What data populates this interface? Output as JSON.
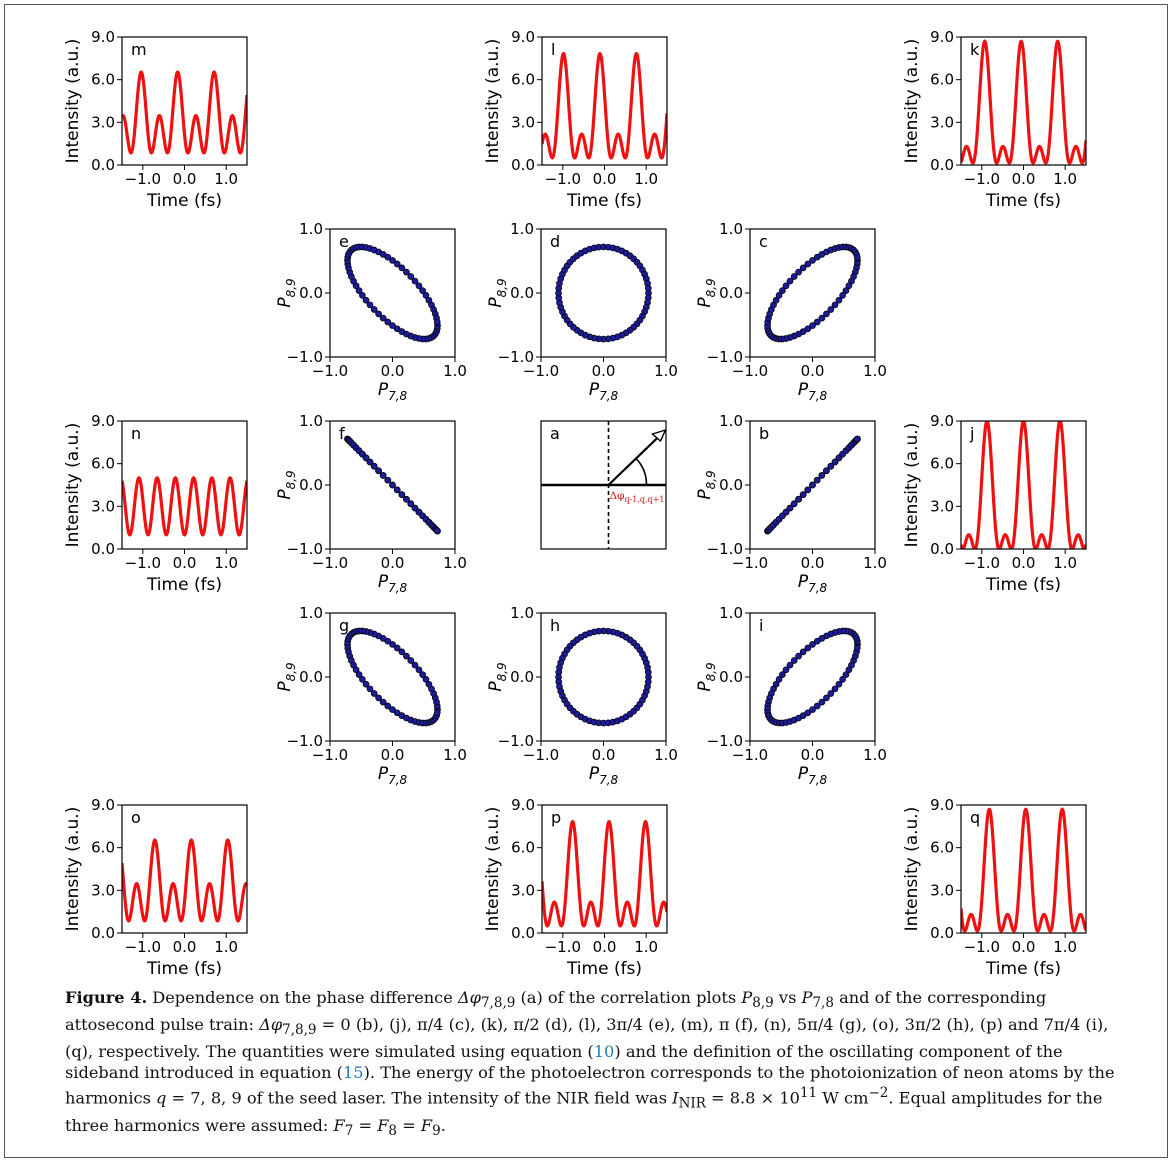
{
  "colors": {
    "trace": "#ee1111",
    "marker_fill": "#1c1c99",
    "marker_edge": "#000000",
    "annotation": "#dd1111",
    "link": "#1a7fc1"
  },
  "chart_data": [
    {
      "id": "m",
      "type": "line",
      "panel_label": "m",
      "xlabel": "Time (fs)",
      "ylabel": "Intensity (a.u.)",
      "xlim": [
        -1.5,
        1.5
      ],
      "ylim": [
        0,
        9
      ],
      "xticks": [
        "−1.0",
        "0.0",
        "1.0"
      ],
      "yticks": [
        "0.0",
        "3.0",
        "6.0",
        "9.0"
      ],
      "phase_unit_pi": 0.75
    },
    {
      "id": "l",
      "type": "line",
      "panel_label": "l",
      "xlabel": "Time (fs)",
      "ylabel": "Intensity (a.u.)",
      "xlim": [
        -1.5,
        1.5
      ],
      "ylim": [
        0,
        9
      ],
      "xticks": [
        "−1.0",
        "0.0",
        "1.0"
      ],
      "yticks": [
        "0.0",
        "3.0",
        "6.0",
        "9.0"
      ],
      "phase_unit_pi": 0.5
    },
    {
      "id": "k",
      "type": "line",
      "panel_label": "k",
      "xlabel": "Time (fs)",
      "ylabel": "Intensity (a.u.)",
      "xlim": [
        -1.5,
        1.5
      ],
      "ylim": [
        0,
        9
      ],
      "xticks": [
        "−1.0",
        "0.0",
        "1.0"
      ],
      "yticks": [
        "0.0",
        "3.0",
        "6.0",
        "9.0"
      ],
      "phase_unit_pi": 0.25
    },
    {
      "id": "n",
      "type": "line",
      "panel_label": "n",
      "xlabel": "Time (fs)",
      "ylabel": "Intensity (a.u.)",
      "xlim": [
        -1.5,
        1.5
      ],
      "ylim": [
        0,
        9
      ],
      "xticks": [
        "−1.0",
        "0.0",
        "1.0"
      ],
      "yticks": [
        "0.0",
        "3.0",
        "6.0",
        "9.0"
      ],
      "phase_unit_pi": 1.0
    },
    {
      "id": "j",
      "type": "line",
      "panel_label": "j",
      "xlabel": "Time (fs)",
      "ylabel": "Intensity (a.u.)",
      "xlim": [
        -1.5,
        1.5
      ],
      "ylim": [
        0,
        9
      ],
      "xticks": [
        "−1.0",
        "0.0",
        "1.0"
      ],
      "yticks": [
        "0.0",
        "3.0",
        "6.0",
        "9.0"
      ],
      "phase_unit_pi": 0.0
    },
    {
      "id": "o",
      "type": "line",
      "panel_label": "o",
      "xlabel": "Time (fs)",
      "ylabel": "Intensity (a.u.)",
      "xlim": [
        -1.5,
        1.5
      ],
      "ylim": [
        0,
        9
      ],
      "xticks": [
        "−1.0",
        "0.0",
        "1.0"
      ],
      "yticks": [
        "0.0",
        "3.0",
        "6.0",
        "9.0"
      ],
      "phase_unit_pi": 1.25
    },
    {
      "id": "p",
      "type": "line",
      "panel_label": "p",
      "xlabel": "Time (fs)",
      "ylabel": "Intensity (a.u.)",
      "xlim": [
        -1.5,
        1.5
      ],
      "ylim": [
        0,
        9
      ],
      "xticks": [
        "−1.0",
        "0.0",
        "1.0"
      ],
      "yticks": [
        "0.0",
        "3.0",
        "6.0",
        "9.0"
      ],
      "phase_unit_pi": 1.5
    },
    {
      "id": "q",
      "type": "line",
      "panel_label": "q",
      "xlabel": "Time (fs)",
      "ylabel": "Intensity (a.u.)",
      "xlim": [
        -1.5,
        1.5
      ],
      "ylim": [
        0,
        9
      ],
      "xticks": [
        "−1.0",
        "0.0",
        "1.0"
      ],
      "yticks": [
        "0.0",
        "3.0",
        "6.0",
        "9.0"
      ],
      "phase_unit_pi": 1.75
    },
    {
      "id": "e",
      "type": "scatter",
      "panel_label": "e",
      "xlabel": "P7,8",
      "ylabel": "P8,9",
      "xlim": [
        -1,
        1
      ],
      "ylim": [
        -1,
        1
      ],
      "xticks": [
        "−1.0",
        "0.0",
        "1.0"
      ],
      "yticks": [
        "−1.0",
        "0.0",
        "1.0"
      ],
      "phase_unit_pi": 0.75
    },
    {
      "id": "d",
      "type": "scatter",
      "panel_label": "d",
      "xlabel": "P7,8",
      "ylabel": "P8,9",
      "xlim": [
        -1,
        1
      ],
      "ylim": [
        -1,
        1
      ],
      "xticks": [
        "−1.0",
        "0.0",
        "1.0"
      ],
      "yticks": [
        "−1.0",
        "0.0",
        "1.0"
      ],
      "phase_unit_pi": 0.5
    },
    {
      "id": "c",
      "type": "scatter",
      "panel_label": "c",
      "xlabel": "P7,8",
      "ylabel": "P8,9",
      "xlim": [
        -1,
        1
      ],
      "ylim": [
        -1,
        1
      ],
      "xticks": [
        "−1.0",
        "0.0",
        "1.0"
      ],
      "yticks": [
        "−1.0",
        "0.0",
        "1.0"
      ],
      "phase_unit_pi": 0.25
    },
    {
      "id": "f",
      "type": "scatter",
      "panel_label": "f",
      "xlabel": "P7,8",
      "ylabel": "P8,9",
      "xlim": [
        -1,
        1
      ],
      "ylim": [
        -1,
        1
      ],
      "xticks": [
        "−1.0",
        "0.0",
        "1.0"
      ],
      "yticks": [
        "−1.0",
        "0.0",
        "1.0"
      ],
      "phase_unit_pi": 1.0
    },
    {
      "id": "b",
      "type": "scatter",
      "panel_label": "b",
      "xlabel": "P7,8",
      "ylabel": "P8,9",
      "xlim": [
        -1,
        1
      ],
      "ylim": [
        -1,
        1
      ],
      "xticks": [
        "−1.0",
        "0.0",
        "1.0"
      ],
      "yticks": [
        "−1.0",
        "0.0",
        "1.0"
      ],
      "phase_unit_pi": 0.0
    },
    {
      "id": "g",
      "type": "scatter",
      "panel_label": "g",
      "xlabel": "P7,8",
      "ylabel": "P8,9",
      "xlim": [
        -1,
        1
      ],
      "ylim": [
        -1,
        1
      ],
      "xticks": [
        "−1.0",
        "0.0",
        "1.0"
      ],
      "yticks": [
        "−1.0",
        "0.0",
        "1.0"
      ],
      "phase_unit_pi": 1.25
    },
    {
      "id": "h",
      "type": "scatter",
      "panel_label": "h",
      "xlabel": "P7,8",
      "ylabel": "P8,9",
      "xlim": [
        -1,
        1
      ],
      "ylim": [
        -1,
        1
      ],
      "xticks": [
        "−1.0",
        "0.0",
        "1.0"
      ],
      "yticks": [
        "−1.0",
        "0.0",
        "1.0"
      ],
      "phase_unit_pi": 1.5
    },
    {
      "id": "i",
      "type": "scatter",
      "panel_label": "i",
      "xlabel": "P7,8",
      "ylabel": "P8,9",
      "xlim": [
        -1,
        1
      ],
      "ylim": [
        -1,
        1
      ],
      "xticks": [
        "−1.0",
        "0.0",
        "1.0"
      ],
      "yticks": [
        "−1.0",
        "0.0",
        "1.0"
      ],
      "phase_unit_pi": 1.75
    },
    {
      "id": "a",
      "type": "diagram",
      "panel_label": "a",
      "annotation": "Δφq-1,q,q+1"
    }
  ],
  "caption": {
    "label": "Figure 4.",
    "p1": "Dependence on the phase difference ",
    "dphi": "Δφ",
    "sub789": "7,8,9",
    "p2": " (a) of the correlation plots ",
    "P": "P",
    "sub89": "8,9",
    "vs": " vs ",
    "sub78": "7,8",
    "p3": " and of the corresponding attosecond pulse train: ",
    "p4": " = 0 (b), (j), π/4 (c), (k), π/2 (d), (l), 3π/4 (e), (m), π (f), (n), 5π/4 (g), (o), 3π/2 (h), (p) and 7π/4 (i), (q), respectively. The quantities were simulated using equation (",
    "ref1": "10",
    "p5": ") and the definition of the oscillating component of the sideband introduced in equation (",
    "ref2": "15",
    "p6": "). The energy of the photoelectron corresponds to the photoionization of neon atoms by the harmonics ",
    "q": "q",
    "p7": " = 7, 8, 9 of the seed laser. The intensity of the NIR field was ",
    "I": "I",
    "subNIR": "NIR",
    "p8": " = 8.8 × 10",
    "sup11": "11",
    "p9": " W cm",
    "supm2": "−2",
    "p10": ". Equal amplitudes for the three harmonics were assumed: ",
    "F": "F",
    "s7": "7",
    "eq": " = ",
    "s8": "8",
    "s9": "9",
    "end": "."
  }
}
